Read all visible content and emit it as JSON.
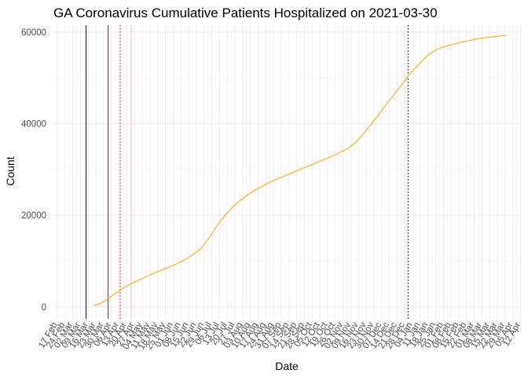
{
  "chart_data": {
    "type": "line",
    "title": "GA Coronavirus Cumulative Patients Hospitalized on 2021-03-30",
    "xlabel": "Date",
    "ylabel": "Count",
    "ylim": [
      -2600,
      61500
    ],
    "xlim": [
      "2020-02-12",
      "2021-04-13"
    ],
    "grid": true,
    "legend": "none",
    "y_ticks": [
      0,
      20000,
      40000,
      60000
    ],
    "y_tick_labels": [
      "0",
      "20000",
      "40000",
      "60000"
    ],
    "x_ticks": [
      "2020-02-17",
      "2020-02-24",
      "2020-03-02",
      "2020-03-09",
      "2020-03-16",
      "2020-03-23",
      "2020-03-30",
      "2020-04-06",
      "2020-04-13",
      "2020-04-20",
      "2020-04-27",
      "2020-05-04",
      "2020-05-11",
      "2020-05-18",
      "2020-05-25",
      "2020-06-01",
      "2020-06-08",
      "2020-06-15",
      "2020-06-22",
      "2020-06-29",
      "2020-07-06",
      "2020-07-13",
      "2020-07-20",
      "2020-07-27",
      "2020-08-03",
      "2020-08-10",
      "2020-08-17",
      "2020-08-24",
      "2020-08-31",
      "2020-09-07",
      "2020-09-14",
      "2020-09-21",
      "2020-09-28",
      "2020-10-05",
      "2020-10-12",
      "2020-10-19",
      "2020-10-26",
      "2020-11-02",
      "2020-11-09",
      "2020-11-16",
      "2020-11-23",
      "2020-11-30",
      "2020-12-07",
      "2020-12-14",
      "2020-12-21",
      "2020-12-28",
      "2021-01-04",
      "2021-01-11",
      "2021-01-18",
      "2021-01-25",
      "2021-02-01",
      "2021-02-08",
      "2021-02-15",
      "2021-02-22",
      "2021-03-01",
      "2021-03-08",
      "2021-03-15",
      "2021-03-22",
      "2021-03-29",
      "2021-04-05",
      "2021-04-12"
    ],
    "x_tick_labels": [
      "17 Feb",
      "24 Feb",
      "02 Mar",
      "09 Mar",
      "16 Mar",
      "23 Mar",
      "30 Mar",
      "06 Apr",
      "13 Apr",
      "20 Apr",
      "27 Apr",
      "04 May",
      "11 May",
      "18 May",
      "25 May",
      "01 Jun",
      "08 Jun",
      "15 Jun",
      "22 Jun",
      "29 Jun",
      "06 Jul",
      "13 Jul",
      "20 Jul",
      "27 Jul",
      "03 Aug",
      "10 Aug",
      "17 Aug",
      "24 Aug",
      "31 Aug",
      "07 Sep",
      "14 Sep",
      "21 Sep",
      "28 Sep",
      "05 Oct",
      "12 Oct",
      "19 Oct",
      "26 Oct",
      "02 Nov",
      "09 Nov",
      "16 Nov",
      "23 Nov",
      "30 Nov",
      "07 Dec",
      "14 Dec",
      "21 Dec",
      "28 Dec",
      "04 Jan",
      "11 Jan",
      "18 Jan",
      "25 Jan",
      "01 Feb",
      "08 Feb",
      "15 Feb",
      "22 Feb",
      "01 Mar",
      "08 Mar",
      "15 Mar",
      "22 Mar",
      "29 Mar",
      "05 Apr",
      "12 Apr"
    ],
    "vlines": [
      {
        "date": "2020-03-14",
        "color": "#0000ff",
        "style": "solid"
      },
      {
        "date": "2020-04-03",
        "color": "#ff0000",
        "style": "solid"
      },
      {
        "date": "2020-04-14",
        "color": "#ff0000",
        "style": "dotted"
      },
      {
        "date": "2020-04-24",
        "color": "#ffc0cb",
        "style": "solid"
      },
      {
        "date": "2020-12-31",
        "color": "#000000",
        "style": "dotted"
      }
    ],
    "series": [
      {
        "color": "#ffa500",
        "x": [
          "2020-03-21",
          "2020-03-28",
          "2020-04-04",
          "2020-04-11",
          "2020-04-18",
          "2020-04-25",
          "2020-05-02",
          "2020-05-09",
          "2020-05-16",
          "2020-05-23",
          "2020-05-30",
          "2020-06-06",
          "2020-06-13",
          "2020-06-20",
          "2020-06-27",
          "2020-07-04",
          "2020-07-11",
          "2020-07-18",
          "2020-07-25",
          "2020-08-01",
          "2020-08-08",
          "2020-08-15",
          "2020-08-22",
          "2020-08-29",
          "2020-09-05",
          "2020-09-12",
          "2020-09-19",
          "2020-09-26",
          "2020-10-03",
          "2020-10-10",
          "2020-10-17",
          "2020-10-24",
          "2020-10-31",
          "2020-11-07",
          "2020-11-14",
          "2020-11-21",
          "2020-11-28",
          "2020-12-05",
          "2020-12-12",
          "2020-12-19",
          "2020-12-26",
          "2021-01-02",
          "2021-01-09",
          "2021-01-16",
          "2021-01-23",
          "2021-01-30",
          "2021-02-06",
          "2021-02-13",
          "2021-02-20",
          "2021-02-27",
          "2021-03-06",
          "2021-03-13",
          "2021-03-20",
          "2021-03-27",
          "2021-03-30"
        ],
        "values": [
          300,
          900,
          2000,
          3200,
          4300,
          5200,
          6000,
          6800,
          7500,
          8200,
          8900,
          9600,
          10500,
          11600,
          13000,
          15200,
          17800,
          20000,
          21800,
          23300,
          24600,
          25600,
          26500,
          27400,
          28100,
          28800,
          29500,
          30200,
          30900,
          31600,
          32300,
          33000,
          33800,
          34700,
          36000,
          38000,
          40000,
          42200,
          44500,
          46600,
          48700,
          51000,
          52800,
          54500,
          55800,
          56600,
          57100,
          57500,
          57900,
          58300,
          58600,
          58800,
          59000,
          59200,
          59300
        ]
      }
    ]
  }
}
